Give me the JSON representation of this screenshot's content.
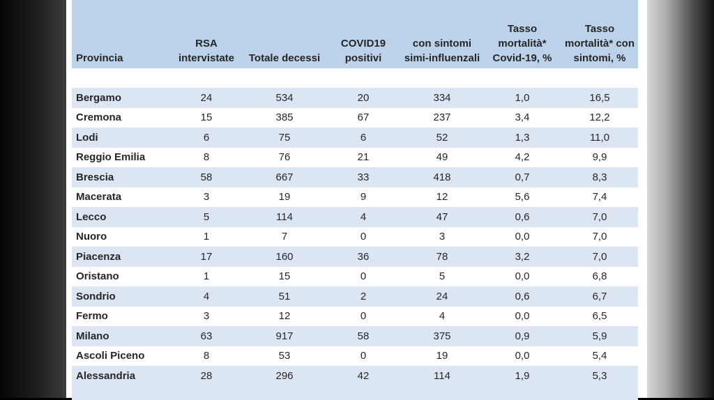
{
  "table": {
    "headers": [
      "Provincia",
      "RSA intervistate",
      "Totale decessi",
      "COVID19 positivi",
      "con sintomi simi-influenzali",
      "Tasso mortalità* Covid-19, %",
      "Tasso mortalità* con sintomi, %"
    ],
    "rows": [
      [
        "Bergamo",
        "24",
        "534",
        "20",
        "334",
        "1,0",
        "16,5"
      ],
      [
        "Cremona",
        "15",
        "385",
        "67",
        "237",
        "3,4",
        "12,2"
      ],
      [
        "Lodi",
        "6",
        "75",
        "6",
        "52",
        "1,3",
        "11,0"
      ],
      [
        "Reggio Emilia",
        "8",
        "76",
        "21",
        "49",
        "4,2",
        "9,9"
      ],
      [
        "Brescia",
        "58",
        "667",
        "33",
        "418",
        "0,7",
        "8,3"
      ],
      [
        "Macerata",
        "3",
        "19",
        "9",
        "12",
        "5,6",
        "7,4"
      ],
      [
        "Lecco",
        "5",
        "114",
        "4",
        "47",
        "0,6",
        "7,0"
      ],
      [
        "Nuoro",
        "1",
        "7",
        "0",
        "3",
        "0,0",
        "7,0"
      ],
      [
        "Piacenza",
        "17",
        "160",
        "36",
        "78",
        "3,2",
        "7,0"
      ],
      [
        "Oristano",
        "1",
        "15",
        "0",
        "5",
        "0,0",
        "6,8"
      ],
      [
        "Sondrio",
        "4",
        "51",
        "2",
        "24",
        "0,6",
        "6,7"
      ],
      [
        "Fermo",
        "3",
        "12",
        "0",
        "4",
        "0,0",
        "6,5"
      ],
      [
        "Milano",
        "63",
        "917",
        "58",
        "375",
        "0,9",
        "5,9"
      ],
      [
        "Ascoli Piceno",
        "8",
        "53",
        "0",
        "19",
        "0,0",
        "5,4"
      ],
      [
        "Alessandria",
        "28",
        "296",
        "42",
        "114",
        "1,9",
        "5,3"
      ]
    ]
  },
  "colors": {
    "header_bg": "#bcd2ea",
    "stripe_bg": "#dce6f2",
    "text": "#262626"
  }
}
